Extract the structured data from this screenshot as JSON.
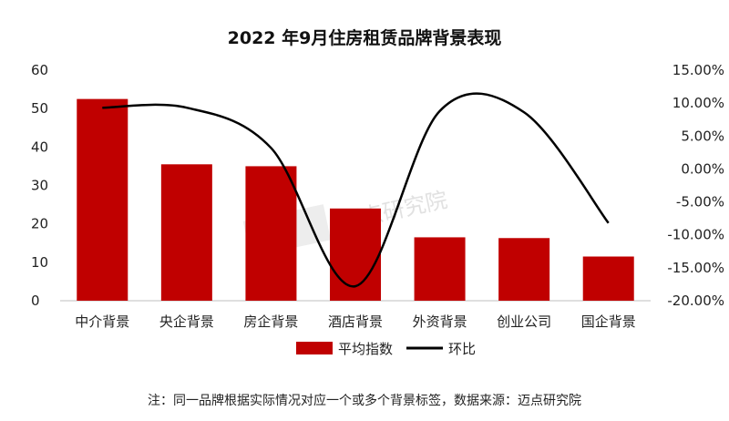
{
  "chart_data": {
    "type": "bar+line",
    "title": "2022 年9月住房租赁品牌背景表现",
    "categories": [
      "中介背景",
      "央企背景",
      "房企背景",
      "酒店背景",
      "外资背景",
      "创业公司",
      "国企背景"
    ],
    "series": [
      {
        "name": "平均指数",
        "type": "bar",
        "axis": "left",
        "color": "#c00000",
        "values": [
          52.5,
          35.5,
          35.0,
          24.0,
          16.5,
          16.3,
          11.5
        ]
      },
      {
        "name": "环比",
        "type": "line",
        "axis": "right",
        "color": "#000000",
        "values": [
          9.3,
          9.3,
          3.2,
          -17.8,
          8.8,
          8.6,
          -8.2
        ]
      }
    ],
    "y_left": {
      "min": 0,
      "max": 60,
      "ticks": [
        "0",
        "10",
        "20",
        "30",
        "40",
        "50",
        "60"
      ]
    },
    "y_right": {
      "min": -20,
      "max": 15,
      "ticks": [
        "-20.00%",
        "-15.00%",
        "-10.00%",
        "-5.00%",
        "0.00%",
        "5.00%",
        "10.00%",
        "15.00%"
      ]
    },
    "legend": {
      "position": "bottom"
    },
    "grid": false,
    "note": "注：同一品牌根据实际情况对应一个或多个背景标签，数据来源：迈点研究院",
    "watermark": "迈点研究院"
  }
}
